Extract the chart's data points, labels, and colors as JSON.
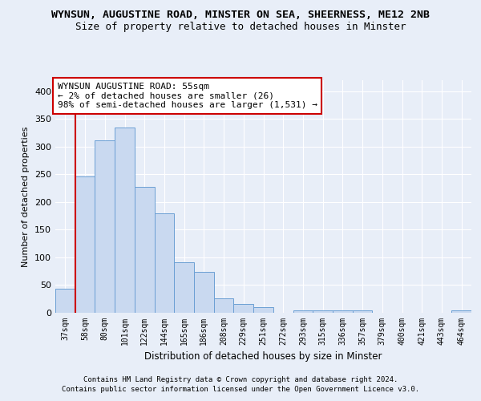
{
  "title1": "WYNSUN, AUGUSTINE ROAD, MINSTER ON SEA, SHEERNESS, ME12 2NB",
  "title2": "Size of property relative to detached houses in Minster",
  "xlabel": "Distribution of detached houses by size in Minster",
  "ylabel": "Number of detached properties",
  "footer1": "Contains HM Land Registry data © Crown copyright and database right 2024.",
  "footer2": "Contains public sector information licensed under the Open Government Licence v3.0.",
  "annotation_line1": "WYNSUN AUGUSTINE ROAD: 55sqm",
  "annotation_line2": "← 2% of detached houses are smaller (26)",
  "annotation_line3": "98% of semi-detached houses are larger (1,531) →",
  "bar_color": "#c9d9f0",
  "bar_edge_color": "#6b9fd4",
  "red_line_color": "#cc0000",
  "categories": [
    "37sqm",
    "58sqm",
    "80sqm",
    "101sqm",
    "122sqm",
    "144sqm",
    "165sqm",
    "186sqm",
    "208sqm",
    "229sqm",
    "251sqm",
    "272sqm",
    "293sqm",
    "315sqm",
    "336sqm",
    "357sqm",
    "379sqm",
    "400sqm",
    "421sqm",
    "443sqm",
    "464sqm"
  ],
  "values": [
    44,
    246,
    312,
    335,
    228,
    180,
    91,
    74,
    26,
    16,
    10,
    0,
    5,
    5,
    5,
    4,
    0,
    0,
    0,
    0,
    4
  ],
  "red_line_x": 0.5,
  "ylim": [
    0,
    420
  ],
  "yticks": [
    0,
    50,
    100,
    150,
    200,
    250,
    300,
    350,
    400
  ],
  "bg_color": "#e8eef8",
  "plot_bg_color": "#e8eef8",
  "grid_color": "#ffffff",
  "title1_fontsize": 9.5,
  "title2_fontsize": 9,
  "annotation_fontsize": 8,
  "ylabel_fontsize": 8,
  "xlabel_fontsize": 8.5,
  "tick_fontsize": 7,
  "footer_fontsize": 6.5
}
